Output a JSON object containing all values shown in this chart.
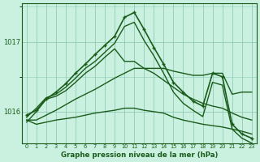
{
  "title": "Graphe pression niveau de la mer (hPa)",
  "background_color": "#caf0e0",
  "grid_color": "#90ccb8",
  "line_color": "#1a5c1a",
  "ylim": [
    1015.55,
    1017.55
  ],
  "yticks": [
    1016,
    1017
  ],
  "xticks": [
    0,
    1,
    2,
    3,
    4,
    5,
    6,
    7,
    8,
    9,
    10,
    11,
    12,
    13,
    14,
    15,
    16,
    17,
    18,
    19,
    20,
    21,
    22,
    23
  ],
  "lines": [
    {
      "x": [
        0,
        1,
        2,
        3,
        4,
        5,
        6,
        7,
        8,
        9,
        10,
        11,
        12,
        13,
        14,
        15,
        16,
        17,
        18,
        19,
        20,
        21,
        22,
        23
      ],
      "y": [
        1015.95,
        1016.02,
        1016.18,
        1016.28,
        1016.4,
        1016.55,
        1016.68,
        1016.82,
        1016.95,
        1017.08,
        1017.35,
        1017.42,
        1017.18,
        1016.92,
        1016.68,
        1016.42,
        1016.28,
        1016.15,
        1016.08,
        1016.55,
        1016.5,
        1015.82,
        1015.68,
        1015.62
      ],
      "marker": "+",
      "linestyle": "-",
      "linewidth": 1.2
    },
    {
      "x": [
        0,
        1,
        2,
        3,
        4,
        5,
        6,
        7,
        8,
        9,
        10,
        11,
        12,
        13,
        14,
        15,
        16,
        17,
        18,
        19,
        20,
        21,
        22,
        23
      ],
      "y": [
        1015.92,
        1016.05,
        1016.2,
        1016.25,
        1016.35,
        1016.48,
        1016.62,
        1016.72,
        1016.85,
        1016.98,
        1017.22,
        1017.28,
        1017.02,
        1016.8,
        1016.55,
        1016.28,
        1016.12,
        1016.02,
        1015.93,
        1016.42,
        1016.38,
        1015.75,
        1015.62,
        1015.55
      ],
      "marker": "None",
      "linestyle": "-",
      "linewidth": 1.0
    },
    {
      "x": [
        0,
        1,
        2,
        3,
        4,
        5,
        6,
        7,
        8,
        9,
        10,
        11,
        12,
        13,
        14,
        15,
        16,
        17,
        18,
        19,
        20,
        21,
        22,
        23
      ],
      "y": [
        1015.88,
        1015.88,
        1015.95,
        1016.02,
        1016.1,
        1016.18,
        1016.25,
        1016.32,
        1016.4,
        1016.48,
        1016.55,
        1016.62,
        1016.62,
        1016.62,
        1016.62,
        1016.58,
        1016.55,
        1016.52,
        1016.52,
        1016.55,
        1016.55,
        1016.25,
        1016.28,
        1016.28
      ],
      "marker": "None",
      "linestyle": "-",
      "linewidth": 1.0
    },
    {
      "x": [
        0,
        1,
        2,
        3,
        4,
        5,
        6,
        7,
        8,
        9,
        10,
        11,
        12,
        13,
        14,
        15,
        16,
        17,
        18,
        19,
        20,
        21,
        22,
        23
      ],
      "y": [
        1015.88,
        1015.82,
        1015.85,
        1015.88,
        1015.9,
        1015.92,
        1015.95,
        1015.98,
        1016.0,
        1016.02,
        1016.05,
        1016.05,
        1016.02,
        1016.0,
        1015.98,
        1015.92,
        1015.88,
        1015.85,
        1015.82,
        1015.8,
        1015.78,
        1015.75,
        1015.72,
        1015.68
      ],
      "marker": "None",
      "linestyle": "-",
      "linewidth": 1.0
    },
    {
      "x": [
        0,
        1,
        2,
        3,
        4,
        5,
        6,
        7,
        8,
        9,
        10,
        11,
        12,
        13,
        14,
        15,
        16,
        17,
        18,
        19,
        20,
        21,
        22,
        23
      ],
      "y": [
        1015.85,
        1016.0,
        1016.18,
        1016.22,
        1016.3,
        1016.42,
        1016.55,
        1016.65,
        1016.78,
        1016.9,
        1016.72,
        1016.72,
        1016.62,
        1016.55,
        1016.45,
        1016.35,
        1016.25,
        1016.18,
        1016.12,
        1016.08,
        1016.05,
        1015.98,
        1015.92,
        1015.88
      ],
      "marker": "None",
      "linestyle": "-",
      "linewidth": 1.0
    }
  ]
}
